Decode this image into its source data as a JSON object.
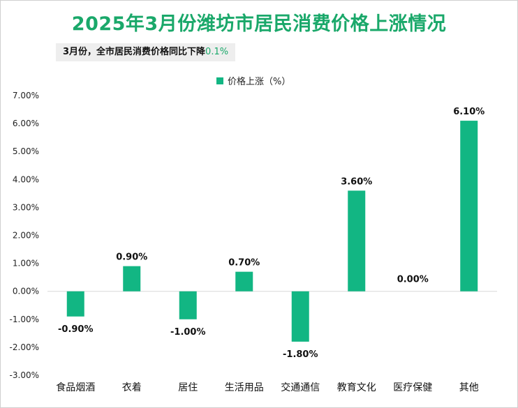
{
  "title": "2025年3月份潍坊市居民消费价格上涨情况",
  "subtitle": {
    "prefix": "3月份，全市居民消费价格同比下降",
    "highlight": "0.1%"
  },
  "legend_label": "价格上涨（%）",
  "colors": {
    "bar": "#12b683",
    "title": "#1aa86a",
    "highlight": "#1aa86a"
  },
  "chart_data": {
    "type": "bar",
    "title": "2025年3月份潍坊市居民消费价格上涨情况",
    "categories": [
      "食品烟酒",
      "衣着",
      "居住",
      "生活用品",
      "交通通信",
      "教育文化",
      "医疗保健",
      "其他"
    ],
    "series": [
      {
        "name": "价格上涨（%）",
        "values": [
          -0.9,
          0.9,
          -1.0,
          0.7,
          -1.8,
          3.6,
          0.0,
          6.1
        ]
      }
    ],
    "data_labels": [
      "-0.90%",
      "0.90%",
      "-1.00%",
      "0.70%",
      "-1.80%",
      "3.60%",
      "0.00%",
      "6.10%"
    ],
    "ylim": [
      -3.0,
      7.0
    ],
    "yticks": [
      7.0,
      6.0,
      5.0,
      4.0,
      3.0,
      2.0,
      1.0,
      0.0,
      -1.0,
      -2.0,
      -3.0
    ],
    "ytick_labels": [
      "7.00%",
      "6.00%",
      "5.00%",
      "4.00%",
      "3.00%",
      "2.00%",
      "1.00%",
      "0.00%",
      "-1.00%",
      "-2.00%",
      "-3.00%"
    ],
    "legend_position": "top-center",
    "grid": false
  }
}
